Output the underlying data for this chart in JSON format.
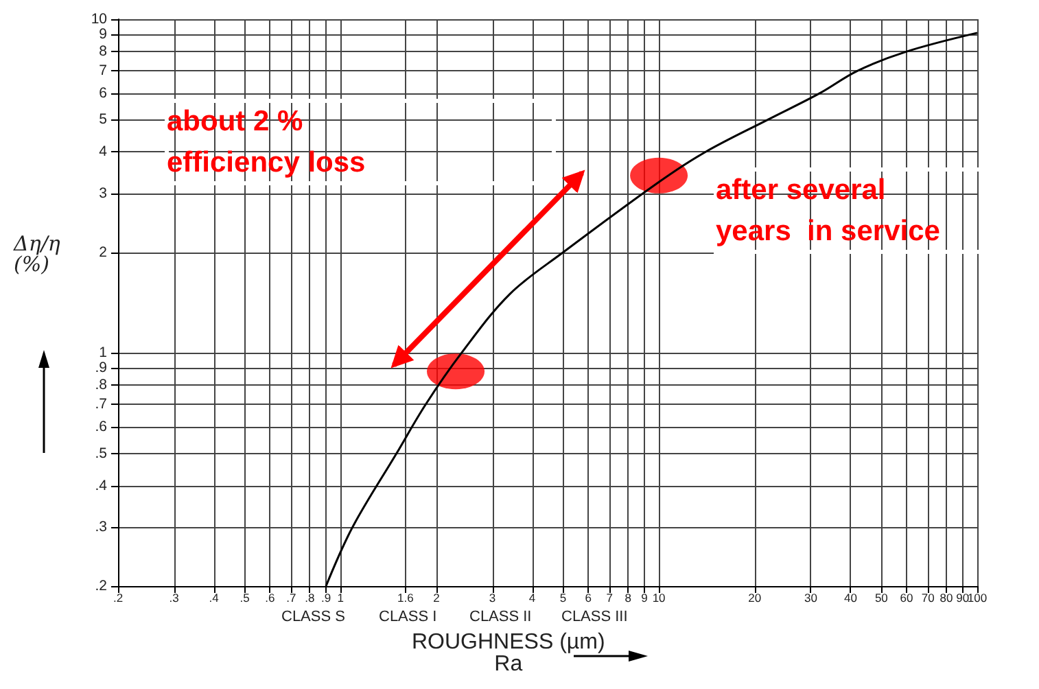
{
  "chart_data": {
    "type": "line",
    "xlabel": "ROUGHNESS (µm)\nRa",
    "ylabel": "Δη/η (%)",
    "log": "xy",
    "grid": true,
    "marker": "none",
    "line_style": "solid",
    "xlim": [
      0.2,
      100
    ],
    "xticks": [
      {
        "value": 0.2,
        "label": ".2"
      },
      {
        "value": 0.3,
        "label": ".3"
      },
      {
        "value": 0.4,
        "label": ".4"
      },
      {
        "value": 0.5,
        "label": ".5"
      },
      {
        "value": 0.6,
        "label": ".6"
      },
      {
        "value": 0.7,
        "label": ".7"
      },
      {
        "value": 0.8,
        "label": ".8"
      },
      {
        "value": 0.9,
        "label": ".9"
      },
      1,
      1.6,
      2,
      3,
      4,
      5,
      6,
      7,
      8,
      9,
      10,
      20,
      30,
      40,
      50,
      60,
      70,
      80,
      90,
      100
    ],
    "ylim": [
      0.2,
      10
    ],
    "yticks": [
      {
        "value": 0.2,
        "label": ".2"
      },
      {
        "value": 0.3,
        "label": ".3"
      },
      {
        "value": 0.4,
        "label": ".4"
      },
      {
        "value": 0.5,
        "label": ".5"
      },
      {
        "value": 0.6,
        "label": ".6"
      },
      {
        "value": 0.7,
        "label": ".7"
      },
      {
        "value": 0.8,
        "label": ".8"
      },
      {
        "value": 0.9,
        "label": ".9"
      },
      1,
      2,
      3,
      4,
      5,
      6,
      7,
      8,
      9,
      10
    ],
    "series": [
      {
        "color": "#000000",
        "x": [
          0.9,
          1.09,
          1.5,
          1.85,
          2.4,
          3.4,
          5,
          10,
          14,
          22,
          32,
          42,
          60,
          100
        ],
        "values": [
          0.2,
          0.3,
          0.5,
          0.7,
          1,
          1.5,
          2,
          3.25,
          4,
          5,
          6,
          7,
          8,
          9.1
        ]
      },
      {
        "type": "scatter",
        "marker": "circle",
        "color": "#ff0000",
        "x": [
          2.3,
          10
        ],
        "values": [
          0.88,
          3.4
        ]
      }
    ],
    "annotations": [
      "about 2 %\nefficiency loss",
      "after several\nyears  in service",
      "CLASS S",
      "CLASS I",
      "CLASS II",
      "CLASS III"
    ]
  }
}
